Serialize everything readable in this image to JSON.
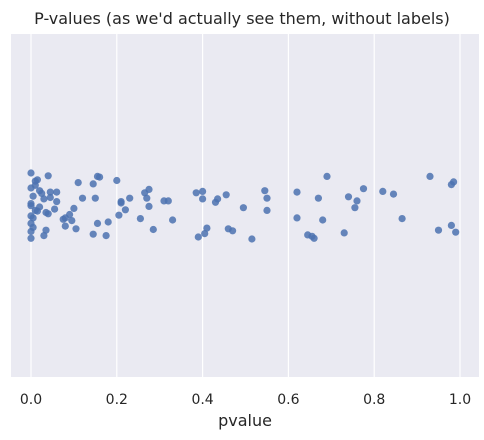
{
  "chart_data": {
    "type": "scatter",
    "title": "P-values (as we'd actually see them, without labels)",
    "xlabel": "pvalue",
    "ylabel": "",
    "xlim": [
      -0.05,
      1.03
    ],
    "xticks": [
      0.0,
      0.2,
      0.4,
      0.6,
      0.8,
      1.0
    ],
    "xtick_labels": [
      "0.0",
      "0.2",
      "0.4",
      "0.6",
      "0.8",
      "1.0"
    ],
    "grid": "vertical",
    "background": "#eaeaf2",
    "point_color": "#4c72b0",
    "jitter": [
      0.49,
      -0.25,
      -0.02,
      0.16,
      0.39,
      0.01,
      0.27,
      -0.47,
      0.19,
      -0.13,
      0.33,
      -0.35,
      0.08,
      -0.29,
      0.09,
      -0.37,
      0.03,
      -0.21,
      0.45,
      -0.09,
      0.37,
      0.11,
      0.13,
      -0.43,
      -0.19,
      0.06,
      -0.19,
      0.31,
      0.14,
      0.05,
      0.35,
      -0.33,
      -0.1,
      0.43,
      -0.31,
      -0.42,
      0.27,
      -0.41,
      0.25,
      0.15,
      -0.05,
      -0.03,
      0.07,
      -0.1,
      0.2,
      -0.18,
      -0.1,
      -0.23,
      0.02,
      0.36,
      -0.06,
      -0.06,
      0.22,
      -0.18,
      0.47,
      -0.09,
      -0.2,
      0.42,
      -0.04,
      -0.09,
      -0.15,
      0.35,
      0.38,
      0.04,
      0.5,
      -0.21,
      0.08,
      -0.1,
      0.19,
      -0.19,
      0.44,
      0.46,
      0.49,
      -0.1,
      0.22,
      -0.42,
      0.41,
      -0.12,
      0.04,
      -0.06,
      -0.24,
      -0.2,
      -0.16,
      0.2,
      -0.42,
      0.37,
      -0.3,
      0.3,
      -0.34,
      0.4,
      -0.11,
      -0.05,
      0.23,
      -0.1,
      0.45,
      0.19,
      0.34,
      -0.36,
      0.21,
      -0.17
    ],
    "x": [
      0.0,
      0.0,
      0.0,
      0.0,
      0.0,
      0.0,
      0.0,
      0.0,
      0.005,
      0.005,
      0.005,
      0.01,
      0.01,
      0.01,
      0.015,
      0.015,
      0.02,
      0.02,
      0.03,
      0.03,
      0.035,
      0.035,
      0.04,
      0.04,
      0.045,
      0.055,
      0.06,
      0.08,
      0.09,
      0.1,
      0.105,
      0.11,
      0.12,
      0.145,
      0.145,
      0.155,
      0.155,
      0.16,
      0.18,
      0.205,
      0.21,
      0.21,
      0.22,
      0.23,
      0.255,
      0.265,
      0.27,
      0.275,
      0.275,
      0.285,
      0.31,
      0.32,
      0.33,
      0.385,
      0.39,
      0.4,
      0.4,
      0.405,
      0.43,
      0.435,
      0.455,
      0.46,
      0.47,
      0.495,
      0.515,
      0.545,
      0.55,
      0.55,
      0.62,
      0.62,
      0.645,
      0.655,
      0.66,
      0.67,
      0.68,
      0.69,
      0.73,
      0.74,
      0.755,
      0.76,
      0.775,
      0.82,
      0.845,
      0.865,
      0.93,
      0.95,
      0.98,
      0.98,
      0.985,
      0.99,
      0.045,
      0.06,
      0.095,
      0.15,
      0.175,
      0.08,
      0.41,
      0.2,
      0.075,
      0.025
    ]
  }
}
